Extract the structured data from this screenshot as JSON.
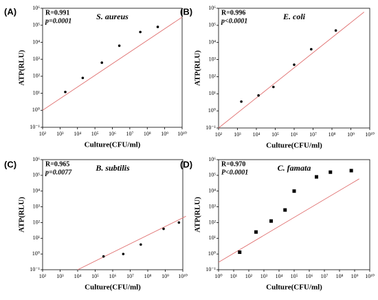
{
  "chart_data": [
    {
      "type": "scatter",
      "panel": "(A)",
      "title": "S. aureus",
      "annotations": [
        "R=0.991",
        "p=0.0001"
      ],
      "x_label": "Culture(CFU/ml)",
      "y_label": "ATP(RLU)",
      "xscale": "log",
      "yscale": "log",
      "color": "#000000",
      "marker": "circle",
      "x": [
        2000,
        20000,
        250000,
        2500000,
        40000000,
        400000000
      ],
      "values": [
        12,
        80,
        630,
        6300,
        40000,
        80000
      ],
      "fit": {
        "color": "#e07070",
        "x": [
          100,
          10000000000
        ],
        "y": [
          1,
          300000
        ]
      },
      "xlim": [
        100,
        10000000000
      ],
      "xticks": [
        {
          "value": 100,
          "label": "10²"
        },
        {
          "value": 1000,
          "label": "10³"
        },
        {
          "value": 10000,
          "label": "10⁴"
        },
        {
          "value": 100000,
          "label": "10⁵"
        },
        {
          "value": 1000000,
          "label": "10⁶"
        },
        {
          "value": 10000000,
          "label": "10⁷"
        },
        {
          "value": 100000000,
          "label": "10⁸"
        },
        {
          "value": 1000000000,
          "label": "10⁹"
        },
        {
          "value": 10000000000,
          "label": "10¹⁰"
        }
      ],
      "ylim": [
        0.1,
        1000000
      ],
      "yticks": [
        {
          "value": 0.1,
          "label": "10⁻¹"
        },
        {
          "value": 1,
          "label": "10⁰"
        },
        {
          "value": 10,
          "label": "10¹"
        },
        {
          "value": 100,
          "label": "10²"
        },
        {
          "value": 1000,
          "label": "10³"
        },
        {
          "value": 10000,
          "label": "10⁴"
        },
        {
          "value": 100000,
          "label": "10⁵"
        },
        {
          "value": 1000000,
          "label": "10⁶"
        }
      ]
    },
    {
      "type": "scatter",
      "panel": "(B)",
      "title": "E. coli",
      "annotations": [
        "R=0.996",
        "p<0.0001"
      ],
      "x_label": "Culture(CFU/ml)",
      "y_label": "ATP(RLU)",
      "xscale": "log",
      "yscale": "log",
      "color": "#000000",
      "marker": "circle",
      "x": [
        1600,
        13000,
        80000,
        1000000,
        8000000,
        160000000
      ],
      "values": [
        3.5,
        8,
        25,
        500,
        4000,
        50000
      ],
      "fit": {
        "color": "#e07070",
        "x": [
          100,
          5000000000
        ],
        "y": [
          0.1,
          600000
        ]
      },
      "xlim": [
        100,
        10000000000
      ],
      "xticks": [
        {
          "value": 100,
          "label": "10²"
        },
        {
          "value": 1000,
          "label": "10³"
        },
        {
          "value": 10000,
          "label": "10⁴"
        },
        {
          "value": 100000,
          "label": "10⁵"
        },
        {
          "value": 1000000,
          "label": "10⁶"
        },
        {
          "value": 10000000,
          "label": "10⁷"
        },
        {
          "value": 100000000,
          "label": "10⁸"
        },
        {
          "value": 1000000000,
          "label": "10⁹"
        },
        {
          "value": 10000000000,
          "label": "10¹⁰"
        }
      ],
      "ylim": [
        0.1,
        1000000
      ],
      "yticks": [
        {
          "value": 0.1,
          "label": "10⁻¹"
        },
        {
          "value": 1,
          "label": "10⁰"
        },
        {
          "value": 10,
          "label": "10¹"
        },
        {
          "value": 100,
          "label": "10²"
        },
        {
          "value": 1000,
          "label": "10³"
        },
        {
          "value": 10000,
          "label": "10⁴"
        },
        {
          "value": 100000,
          "label": "10⁵"
        },
        {
          "value": 1000000,
          "label": "10⁶"
        }
      ]
    },
    {
      "type": "scatter",
      "panel": "(C)",
      "title": "B. subtilis",
      "annotations": [
        "R=0.965",
        "p=0.0077"
      ],
      "x_label": "Culture(CFU/ml)",
      "y_label": "ATP(RLU)",
      "xscale": "log",
      "yscale": "log",
      "color": "#000000",
      "marker": "circle",
      "x": [
        300000,
        4000000,
        40000000,
        800000000,
        6000000000
      ],
      "values": [
        0.7,
        1,
        4,
        40,
        100
      ],
      "fit": {
        "color": "#e07070",
        "x": [
          10000,
          15000000000
        ],
        "y": [
          0.1,
          250
        ]
      },
      "xlim": [
        100,
        10000000000
      ],
      "xticks": [
        {
          "value": 100,
          "label": "10²"
        },
        {
          "value": 1000,
          "label": "10³"
        },
        {
          "value": 10000,
          "label": "10⁴"
        },
        {
          "value": 100000,
          "label": "10⁵"
        },
        {
          "value": 1000000,
          "label": "10⁶"
        },
        {
          "value": 10000000,
          "label": "10⁷"
        },
        {
          "value": 100000000,
          "label": "10⁸"
        },
        {
          "value": 1000000000,
          "label": "10⁹"
        },
        {
          "value": 10000000000,
          "label": "10¹⁰"
        }
      ],
      "ylim": [
        0.1,
        1000000
      ],
      "yticks": [
        {
          "value": 0.1,
          "label": "10⁻¹"
        },
        {
          "value": 1,
          "label": "10⁰"
        },
        {
          "value": 10,
          "label": "10¹"
        },
        {
          "value": 100,
          "label": "10²"
        },
        {
          "value": 1000,
          "label": "10³"
        },
        {
          "value": 10000,
          "label": "10⁴"
        },
        {
          "value": 100000,
          "label": "10⁵"
        },
        {
          "value": 1000000,
          "label": "10⁶"
        }
      ]
    },
    {
      "type": "scatter",
      "panel": "(D)",
      "title": "C. famata",
      "annotations": [
        "R=0.970",
        "P<0.0001"
      ],
      "x_label": "Culture(CFU/ml)",
      "y_label": "ATP(RLU)",
      "xscale": "log",
      "yscale": "log",
      "color": "#000000",
      "marker": "square",
      "x": [
        25,
        300,
        3000,
        25000,
        100000,
        3000000,
        25000000,
        600000000
      ],
      "values": [
        1.3,
        25,
        125,
        630,
        10000,
        80000,
        160000,
        200000
      ],
      "fit": {
        "color": "#e07070",
        "x": [
          1,
          2000000000
        ],
        "y": [
          0.3,
          60000
        ]
      },
      "xlim": [
        1,
        10000000000
      ],
      "xticks": [
        {
          "value": 1,
          "label": "10⁰"
        },
        {
          "value": 10,
          "label": "10¹"
        },
        {
          "value": 100,
          "label": "10²"
        },
        {
          "value": 1000,
          "label": "10³"
        },
        {
          "value": 10000,
          "label": "10⁴"
        },
        {
          "value": 100000,
          "label": "10⁵"
        },
        {
          "value": 1000000,
          "label": "10⁶"
        },
        {
          "value": 10000000,
          "label": "10⁷"
        },
        {
          "value": 100000000,
          "label": "10⁸"
        },
        {
          "value": 1000000000,
          "label": "10⁹"
        },
        {
          "value": 10000000000,
          "label": "10¹⁰"
        }
      ],
      "ylim": [
        0.1,
        1000000
      ],
      "yticks": [
        {
          "value": 0.1,
          "label": "10⁻¹"
        },
        {
          "value": 1,
          "label": "10⁰"
        },
        {
          "value": 10,
          "label": "10¹"
        },
        {
          "value": 100,
          "label": "10²"
        },
        {
          "value": 1000,
          "label": "10³"
        },
        {
          "value": 10000,
          "label": "10⁴"
        },
        {
          "value": 100000,
          "label": "10⁵"
        },
        {
          "value": 1000000,
          "label": "10⁶"
        }
      ]
    }
  ]
}
